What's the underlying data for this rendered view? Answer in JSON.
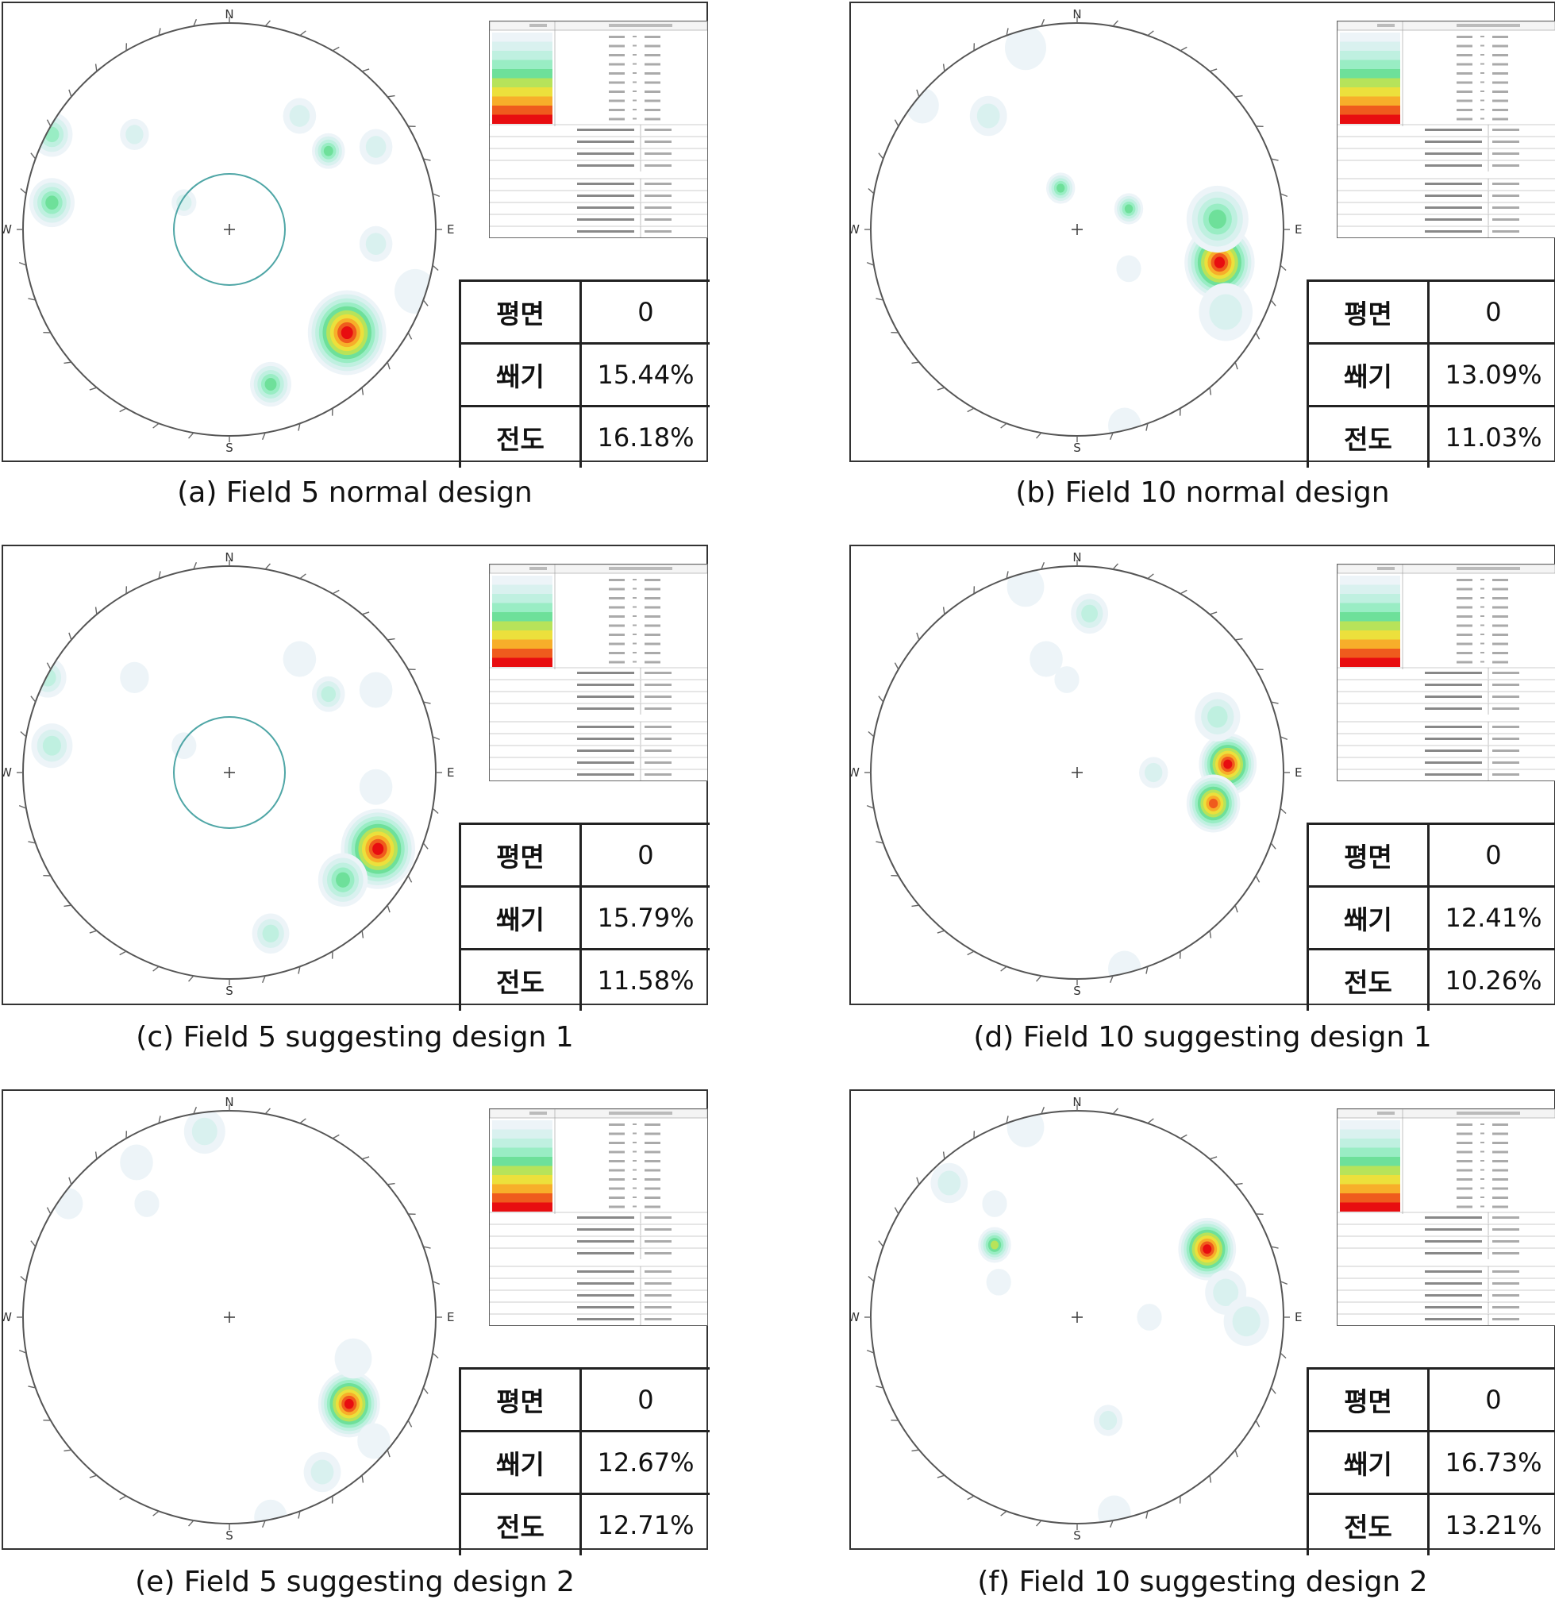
{
  "compass": {
    "n": "N",
    "e": "E",
    "s": "S",
    "w": "W"
  },
  "panels": [
    {
      "id": "a",
      "caption": "(a) Field 5 normal design",
      "has_circle": true,
      "result": [
        {
          "label": "평면",
          "value": "0"
        },
        {
          "label": "쐐기",
          "value": "15.44%"
        },
        {
          "label": "전도",
          "value": "16.18%"
        }
      ],
      "blobs": [
        {
          "dx": 0.57,
          "dy": 0.5,
          "r": 0.19,
          "peak": 10
        },
        {
          "dx": 0.2,
          "dy": 0.75,
          "r": 0.1,
          "peak": 5
        },
        {
          "dx": 0.48,
          "dy": -0.38,
          "r": 0.08,
          "peak": 5
        },
        {
          "dx": -0.86,
          "dy": -0.13,
          "r": 0.11,
          "peak": 5
        },
        {
          "dx": -0.86,
          "dy": -0.46,
          "r": 0.1,
          "peak": 4
        },
        {
          "dx": -0.46,
          "dy": -0.46,
          "r": 0.07,
          "peak": 2
        },
        {
          "dx": 0.71,
          "dy": 0.07,
          "r": 0.08,
          "peak": 2
        },
        {
          "dx": 0.34,
          "dy": -0.55,
          "r": 0.08,
          "peak": 2
        },
        {
          "dx": 0.71,
          "dy": -0.4,
          "r": 0.08,
          "peak": 2
        },
        {
          "dx": -0.22,
          "dy": -0.13,
          "r": 0.06,
          "peak": 2
        },
        {
          "dx": 0.9,
          "dy": 0.3,
          "r": 0.1,
          "peak": 1
        }
      ]
    },
    {
      "id": "b",
      "caption": "(b) Field 10 normal design",
      "has_circle": false,
      "result": [
        {
          "label": "평면",
          "value": "0"
        },
        {
          "label": "쐐기",
          "value": "13.09%"
        },
        {
          "label": "전도",
          "value": "11.03%"
        }
      ],
      "blobs": [
        {
          "dx": 0.69,
          "dy": 0.16,
          "r": 0.17,
          "peak": 10
        },
        {
          "dx": 0.68,
          "dy": -0.05,
          "r": 0.15,
          "peak": 5
        },
        {
          "dx": 0.72,
          "dy": 0.4,
          "r": 0.13,
          "peak": 2
        },
        {
          "dx": 0.25,
          "dy": -0.1,
          "r": 0.07,
          "peak": 5
        },
        {
          "dx": -0.08,
          "dy": -0.2,
          "r": 0.07,
          "peak": 5
        },
        {
          "dx": -0.43,
          "dy": -0.55,
          "r": 0.09,
          "peak": 2
        },
        {
          "dx": -0.25,
          "dy": -0.88,
          "r": 0.1,
          "peak": 1
        },
        {
          "dx": -0.75,
          "dy": -0.6,
          "r": 0.08,
          "peak": 1
        },
        {
          "dx": 0.25,
          "dy": 0.19,
          "r": 0.06,
          "peak": 1
        },
        {
          "dx": 0.23,
          "dy": 0.95,
          "r": 0.08,
          "peak": 1
        }
      ]
    },
    {
      "id": "c",
      "caption": "(c) Field 5 suggesting design 1",
      "has_circle": true,
      "result": [
        {
          "label": "평면",
          "value": "0"
        },
        {
          "label": "쐐기",
          "value": "15.79%"
        },
        {
          "label": "전도",
          "value": "11.58%"
        }
      ],
      "blobs": [
        {
          "dx": 0.72,
          "dy": 0.37,
          "r": 0.18,
          "peak": 10
        },
        {
          "dx": 0.55,
          "dy": 0.52,
          "r": 0.12,
          "peak": 5
        },
        {
          "dx": 0.2,
          "dy": 0.78,
          "r": 0.09,
          "peak": 3
        },
        {
          "dx": 0.48,
          "dy": -0.38,
          "r": 0.08,
          "peak": 3
        },
        {
          "dx": -0.86,
          "dy": -0.13,
          "r": 0.1,
          "peak": 3
        },
        {
          "dx": -0.88,
          "dy": -0.46,
          "r": 0.09,
          "peak": 3
        },
        {
          "dx": -0.46,
          "dy": -0.46,
          "r": 0.07,
          "peak": 1
        },
        {
          "dx": 0.71,
          "dy": 0.07,
          "r": 0.08,
          "peak": 1
        },
        {
          "dx": 0.34,
          "dy": -0.55,
          "r": 0.08,
          "peak": 1
        },
        {
          "dx": 0.71,
          "dy": -0.4,
          "r": 0.08,
          "peak": 1
        },
        {
          "dx": -0.22,
          "dy": -0.13,
          "r": 0.06,
          "peak": 1
        }
      ]
    },
    {
      "id": "d",
      "caption": "(d) Field 10 suggesting design 1",
      "has_circle": false,
      "result": [
        {
          "label": "평면",
          "value": "0"
        },
        {
          "label": "쐐기",
          "value": "12.41%"
        },
        {
          "label": "전도",
          "value": "10.26%"
        }
      ],
      "blobs": [
        {
          "dx": 0.73,
          "dy": -0.04,
          "r": 0.14,
          "peak": 10
        },
        {
          "dx": 0.66,
          "dy": 0.15,
          "r": 0.13,
          "peak": 9
        },
        {
          "dx": 0.68,
          "dy": -0.27,
          "r": 0.11,
          "peak": 3
        },
        {
          "dx": 0.37,
          "dy": 0.0,
          "r": 0.07,
          "peak": 2
        },
        {
          "dx": 0.06,
          "dy": -0.77,
          "r": 0.09,
          "peak": 3
        },
        {
          "dx": -0.15,
          "dy": -0.55,
          "r": 0.08,
          "peak": 1
        },
        {
          "dx": -0.25,
          "dy": -0.9,
          "r": 0.09,
          "peak": 1
        },
        {
          "dx": -0.05,
          "dy": -0.45,
          "r": 0.06,
          "peak": 1
        },
        {
          "dx": 0.23,
          "dy": 0.95,
          "r": 0.08,
          "peak": 1
        }
      ]
    },
    {
      "id": "e",
      "caption": "(e) Field 5 suggesting design 2",
      "has_circle": false,
      "result": [
        {
          "label": "평면",
          "value": "0"
        },
        {
          "label": "쐐기",
          "value": "12.67%"
        },
        {
          "label": "전도",
          "value": "12.71%"
        }
      ],
      "blobs": [
        {
          "dx": 0.58,
          "dy": 0.42,
          "r": 0.15,
          "peak": 10
        },
        {
          "dx": 0.6,
          "dy": 0.2,
          "r": 0.09,
          "peak": 1
        },
        {
          "dx": 0.45,
          "dy": 0.75,
          "r": 0.09,
          "peak": 2
        },
        {
          "dx": 0.7,
          "dy": 0.6,
          "r": 0.08,
          "peak": 1
        },
        {
          "dx": -0.12,
          "dy": -0.9,
          "r": 0.1,
          "peak": 2
        },
        {
          "dx": -0.45,
          "dy": -0.75,
          "r": 0.08,
          "peak": 1
        },
        {
          "dx": -0.4,
          "dy": -0.55,
          "r": 0.06,
          "peak": 1
        },
        {
          "dx": -0.78,
          "dy": -0.55,
          "r": 0.07,
          "peak": 1
        },
        {
          "dx": 0.2,
          "dy": 0.97,
          "r": 0.08,
          "peak": 1
        }
      ]
    },
    {
      "id": "f",
      "caption": "(f) Field 10 suggesting design 2",
      "has_circle": false,
      "result": [
        {
          "label": "평면",
          "value": "0"
        },
        {
          "label": "쐐기",
          "value": "16.73%"
        },
        {
          "label": "전도",
          "value": "13.21%"
        }
      ],
      "blobs": [
        {
          "dx": 0.63,
          "dy": -0.33,
          "r": 0.14,
          "peak": 10
        },
        {
          "dx": 0.72,
          "dy": -0.12,
          "r": 0.1,
          "peak": 2
        },
        {
          "dx": 0.82,
          "dy": 0.02,
          "r": 0.11,
          "peak": 2
        },
        {
          "dx": -0.4,
          "dy": -0.35,
          "r": 0.08,
          "peak": 6
        },
        {
          "dx": -0.62,
          "dy": -0.65,
          "r": 0.09,
          "peak": 2
        },
        {
          "dx": -0.4,
          "dy": -0.55,
          "r": 0.06,
          "peak": 1
        },
        {
          "dx": -0.38,
          "dy": -0.17,
          "r": 0.06,
          "peak": 1
        },
        {
          "dx": 0.35,
          "dy": 0.0,
          "r": 0.06,
          "peak": 1
        },
        {
          "dx": -0.25,
          "dy": -0.92,
          "r": 0.09,
          "peak": 1
        },
        {
          "dx": 0.15,
          "dy": 0.5,
          "r": 0.07,
          "peak": 2
        },
        {
          "dx": 0.18,
          "dy": 0.95,
          "r": 0.08,
          "peak": 1
        }
      ]
    }
  ],
  "density_colors": [
    "#ffffff",
    "#edf4f8",
    "#d9f1ef",
    "#bff0e0",
    "#99edc4",
    "#6ee09a",
    "#b7e35a",
    "#ece03c",
    "#f7ae2a",
    "#ef5b1d",
    "#e80d10"
  ]
}
